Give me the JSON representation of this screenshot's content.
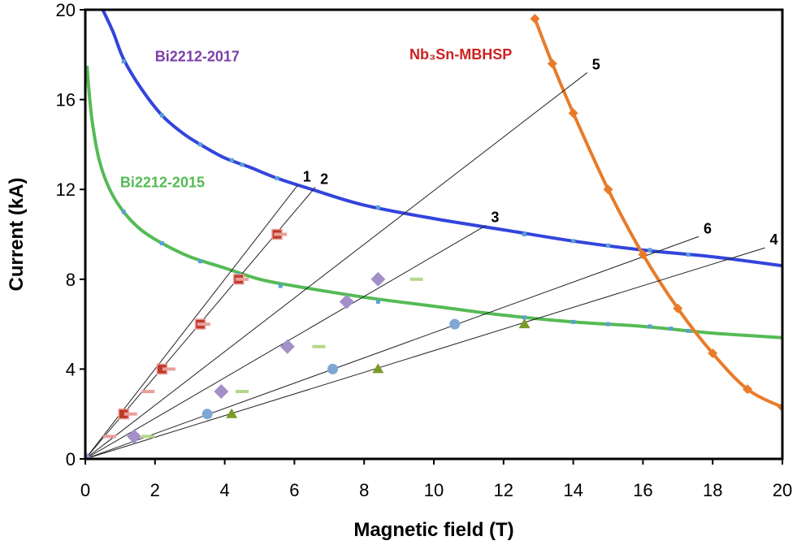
{
  "chart_data": {
    "type": "scatter",
    "title": "",
    "xlabel": "Magnetic field (T)",
    "ylabel": "Current (kA)",
    "xlim": [
      0,
      20
    ],
    "ylim": [
      0,
      20
    ],
    "xticks": [
      0,
      2,
      4,
      6,
      8,
      10,
      12,
      14,
      16,
      18,
      20
    ],
    "yticks": [
      0,
      4,
      8,
      12,
      16,
      20
    ],
    "xtick_labels": [
      "0",
      "2",
      "4",
      "6",
      "8",
      "10",
      "12",
      "14",
      "16",
      "18",
      "20"
    ],
    "ytick_labels": [
      "0",
      "4",
      "8",
      "12",
      "16",
      "20"
    ],
    "grid": false,
    "curves": [
      {
        "label": "Bi2212-2017",
        "color": "#3344dd",
        "label_color": "#7b3fa8",
        "points": [
          [
            0.5,
            20.0
          ],
          [
            0.8,
            19.0
          ],
          [
            1.1,
            17.8
          ],
          [
            1.6,
            16.5
          ],
          [
            2.2,
            15.3
          ],
          [
            2.8,
            14.5
          ],
          [
            3.3,
            14.0
          ],
          [
            4.0,
            13.4
          ],
          [
            4.7,
            13.0
          ],
          [
            5.5,
            12.5
          ],
          [
            6.5,
            12.0
          ],
          [
            8.0,
            11.3
          ],
          [
            10.0,
            10.7
          ],
          [
            12.0,
            10.2
          ],
          [
            14.0,
            9.7
          ],
          [
            16.0,
            9.3
          ],
          [
            18.0,
            9.0
          ],
          [
            20.0,
            8.6
          ]
        ]
      },
      {
        "label": "Bi2212-2015",
        "color": "#55bb55",
        "label_color": "#55bb55",
        "points": [
          [
            0.05,
            17.5
          ],
          [
            0.1,
            16.5
          ],
          [
            0.2,
            15.0
          ],
          [
            0.4,
            13.3
          ],
          [
            0.7,
            12.0
          ],
          [
            1.1,
            11.0
          ],
          [
            1.6,
            10.2
          ],
          [
            2.2,
            9.6
          ],
          [
            3.0,
            9.0
          ],
          [
            4.0,
            8.5
          ],
          [
            5.0,
            8.0
          ],
          [
            6.0,
            7.7
          ],
          [
            8.0,
            7.2
          ],
          [
            10.0,
            6.8
          ],
          [
            12.0,
            6.4
          ],
          [
            14.0,
            6.1
          ],
          [
            16.0,
            5.9
          ],
          [
            18.0,
            5.6
          ],
          [
            20.0,
            5.4
          ]
        ]
      },
      {
        "label": "Nb₃Sn-MBHSP",
        "color": "#e87b2a",
        "label_color": "#cc2222",
        "points": [
          [
            12.9,
            19.6
          ],
          [
            13.4,
            17.6
          ],
          [
            14.0,
            15.4
          ],
          [
            15.0,
            12.0
          ],
          [
            16.0,
            9.1
          ],
          [
            17.0,
            6.7
          ],
          [
            18.0,
            4.7
          ],
          [
            19.0,
            3.1
          ],
          [
            20.0,
            2.3
          ]
        ]
      }
    ],
    "curve_markers": [
      {
        "curve": "Bi2212-2017",
        "points": [
          [
            1.1,
            17.7
          ],
          [
            2.2,
            15.3
          ],
          [
            3.3,
            14.0
          ],
          [
            4.2,
            13.3
          ],
          [
            4.5,
            13.1
          ],
          [
            5.5,
            12.5
          ],
          [
            8.4,
            11.2
          ],
          [
            12.6,
            10.0
          ],
          [
            14.0,
            9.7
          ],
          [
            15.0,
            9.5
          ],
          [
            16.2,
            9.3
          ],
          [
            17.3,
            9.1
          ]
        ]
      },
      {
        "curve": "Bi2212-2015",
        "points": [
          [
            1.1,
            11.0
          ],
          [
            2.2,
            9.6
          ],
          [
            3.3,
            8.8
          ],
          [
            4.4,
            8.2
          ],
          [
            5.6,
            7.7
          ],
          [
            8.4,
            7.0
          ],
          [
            12.6,
            6.3
          ],
          [
            14.0,
            6.1
          ],
          [
            15.0,
            6.0
          ],
          [
            16.2,
            5.9
          ],
          [
            16.8,
            5.8
          ],
          [
            17.3,
            5.7
          ]
        ]
      }
    ],
    "load_lines": [
      {
        "label": "1",
        "end": [
          6.1,
          12.2
        ]
      },
      {
        "label": "2",
        "end": [
          6.6,
          12.1
        ]
      },
      {
        "label": "3",
        "end": [
          11.5,
          10.4
        ]
      },
      {
        "label": "4",
        "end": [
          19.5,
          9.4
        ]
      },
      {
        "label": "5",
        "end": [
          14.4,
          17.2
        ]
      },
      {
        "label": "6",
        "end": [
          17.6,
          9.9
        ]
      }
    ],
    "markers": [
      {
        "shape": "square",
        "color": "#c0392b",
        "points": [
          [
            1.1,
            2.0
          ],
          [
            2.2,
            4.0
          ],
          [
            3.3,
            6.0
          ],
          [
            4.4,
            8.0
          ],
          [
            5.5,
            10.0
          ]
        ]
      },
      {
        "shape": "dash",
        "color": "#e8a09a",
        "points": [
          [
            0.7,
            1.0
          ],
          [
            1.3,
            2.0
          ],
          [
            1.8,
            3.0
          ],
          [
            2.4,
            4.0
          ],
          [
            3.4,
            6.0
          ],
          [
            4.5,
            8.0
          ],
          [
            5.6,
            10.0
          ]
        ]
      },
      {
        "shape": "diamond",
        "color": "#a490c8",
        "points": [
          [
            0.0,
            0.0
          ],
          [
            1.4,
            1.0
          ],
          [
            3.9,
            3.0
          ],
          [
            5.8,
            5.0
          ],
          [
            7.5,
            7.0
          ],
          [
            8.4,
            8.0
          ]
        ]
      },
      {
        "shape": "dash",
        "color": "#b5d68a",
        "points": [
          [
            1.8,
            1.0
          ],
          [
            4.5,
            3.0
          ],
          [
            6.7,
            5.0
          ],
          [
            9.5,
            8.0
          ]
        ]
      },
      {
        "shape": "circle",
        "color": "#7fa7d6",
        "points": [
          [
            3.5,
            2.0
          ],
          [
            7.1,
            4.0
          ],
          [
            10.6,
            6.0
          ]
        ]
      },
      {
        "shape": "triangle",
        "color": "#7a9a2a",
        "points": [
          [
            4.2,
            2.0
          ],
          [
            8.4,
            4.0
          ],
          [
            12.6,
            6.0
          ]
        ]
      }
    ]
  }
}
